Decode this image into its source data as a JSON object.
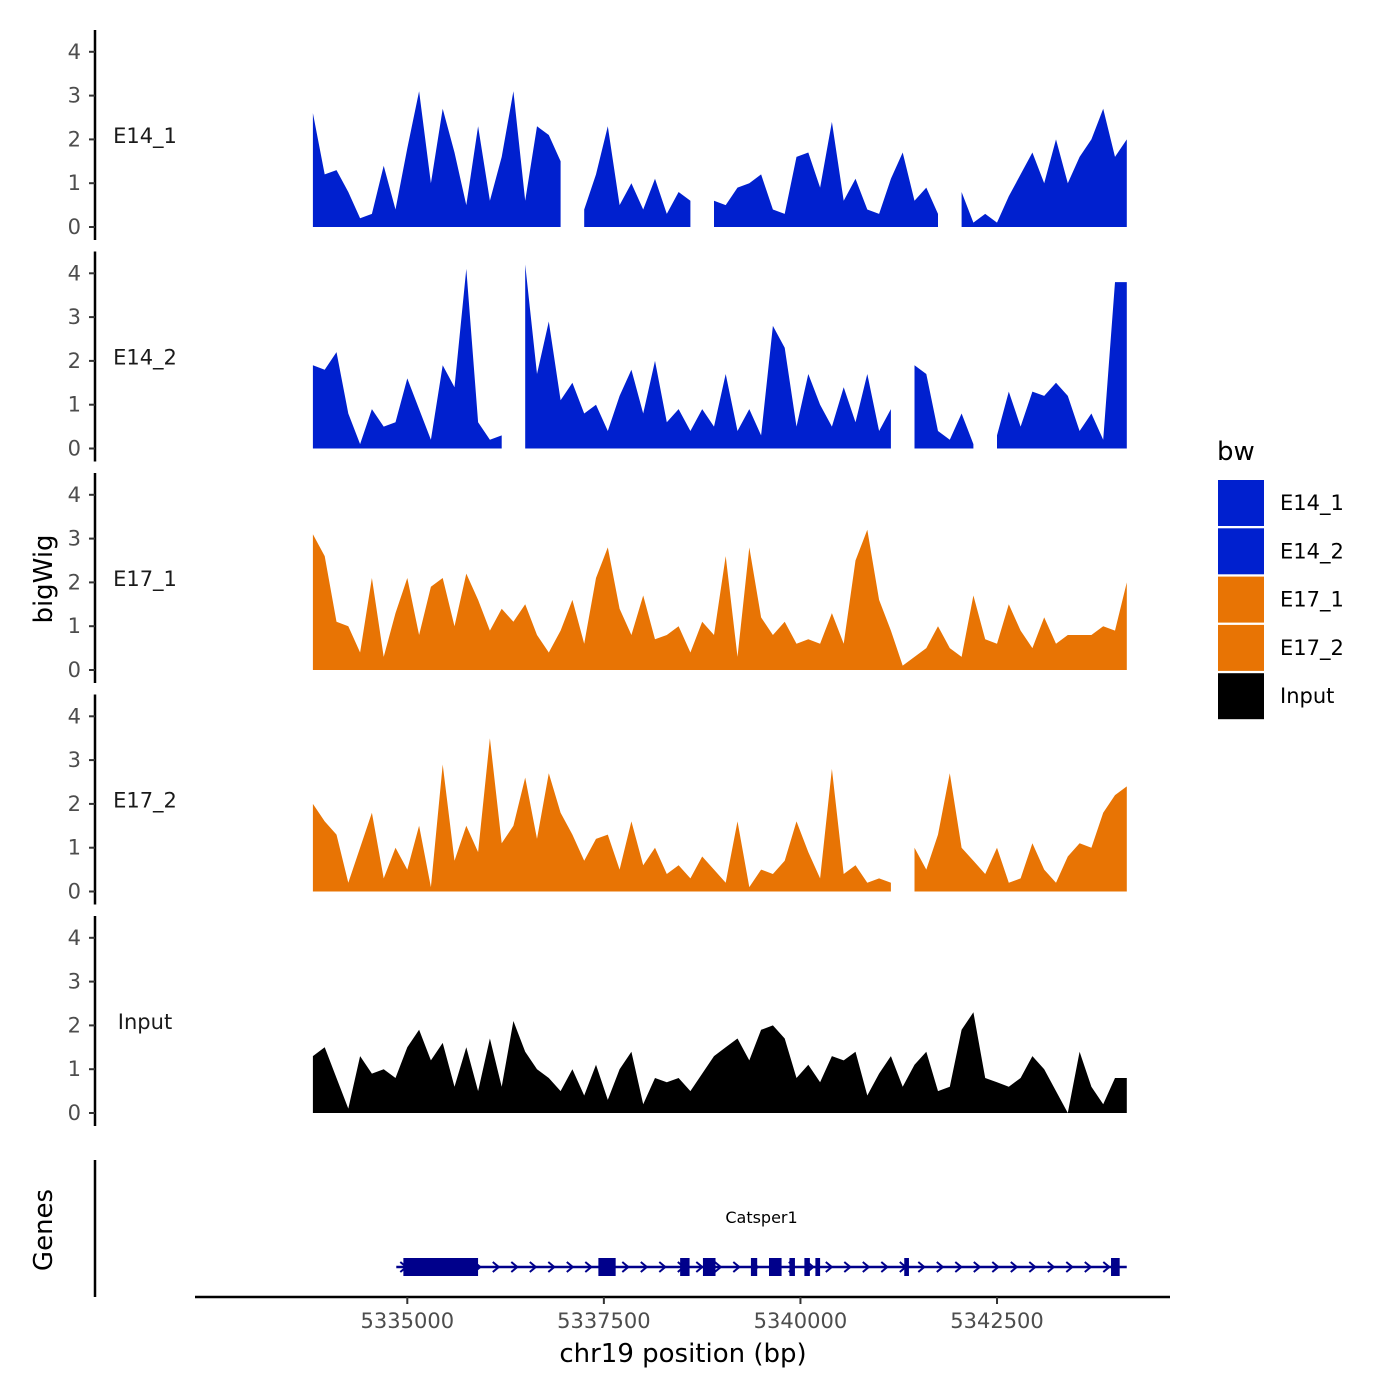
{
  "chart_data": {
    "type": "area",
    "ylabel": "bigWig",
    "xlabel": "chr19 position (bp)",
    "genes_label": "Genes",
    "ylim": [
      0,
      4.5
    ],
    "xlim": [
      5332300,
      5344700
    ],
    "y_ticks": [
      "0",
      "1",
      "2",
      "3",
      "4"
    ],
    "x_ticks": [
      {
        "value": 5335000,
        "label": "5335000"
      },
      {
        "value": 5337500,
        "label": "5337500"
      },
      {
        "value": 5340000,
        "label": "5340000"
      },
      {
        "value": 5342500,
        "label": "5342500"
      }
    ],
    "legend": {
      "title": "bw",
      "items": [
        {
          "label": "E14_1",
          "color": "#0020CF"
        },
        {
          "label": "E14_2",
          "color": "#0020CF"
        },
        {
          "label": "E17_1",
          "color": "#E87404"
        },
        {
          "label": "E17_2",
          "color": "#E87404"
        },
        {
          "label": "Input",
          "color": "#000000"
        }
      ]
    },
    "series": [
      {
        "name": "E14_1",
        "color": "#0020CF",
        "x": [
          5333800,
          5333950,
          5334100,
          5334250,
          5334400,
          5334550,
          5334700,
          5334850,
          5335000,
          5335150,
          5335300,
          5335450,
          5335600,
          5335750,
          5335900,
          5336050,
          5336200,
          5336350,
          5336500,
          5336650,
          5336800,
          5336950,
          5337100,
          5337250,
          5337400,
          5337550,
          5337700,
          5337850,
          5338000,
          5338150,
          5338300,
          5338450,
          5338600,
          5338750,
          5338900,
          5339050,
          5339200,
          5339350,
          5339500,
          5339650,
          5339800,
          5339950,
          5340100,
          5340250,
          5340400,
          5340550,
          5340700,
          5340850,
          5341000,
          5341150,
          5341300,
          5341450,
          5341600,
          5341750,
          5341900,
          5342050,
          5342200,
          5342350,
          5342500,
          5342650,
          5342800,
          5342950,
          5343100,
          5343250,
          5343400,
          5343550,
          5343700,
          5343850,
          5344000,
          5344150
        ],
        "values": [
          2.6,
          1.2,
          1.3,
          0.8,
          0.2,
          0.3,
          1.4,
          0.4,
          1.8,
          3.1,
          1.0,
          2.7,
          1.7,
          0.5,
          2.3,
          0.6,
          1.6,
          3.1,
          0.6,
          2.3,
          2.1,
          1.5,
          null,
          0.4,
          1.2,
          2.3,
          0.5,
          1.0,
          0.4,
          1.1,
          0.3,
          0.8,
          0.6,
          null,
          0.6,
          0.5,
          0.9,
          1.0,
          1.2,
          0.4,
          0.3,
          1.6,
          1.7,
          0.9,
          2.4,
          0.6,
          1.1,
          0.4,
          0.3,
          1.1,
          1.7,
          0.6,
          0.9,
          0.3,
          null,
          0.8,
          0.1,
          0.3,
          0.1,
          0.7,
          1.2,
          1.7,
          1.0,
          2.0,
          1.0,
          1.6,
          2.0,
          2.7,
          1.6,
          2.0
        ]
      },
      {
        "name": "E14_2",
        "color": "#0020CF",
        "x": [
          5333800,
          5333950,
          5334100,
          5334250,
          5334400,
          5334550,
          5334700,
          5334850,
          5335000,
          5335150,
          5335300,
          5335450,
          5335600,
          5335750,
          5335900,
          5336050,
          5336200,
          5336350,
          5336500,
          5336650,
          5336800,
          5336950,
          5337100,
          5337250,
          5337400,
          5337550,
          5337700,
          5337850,
          5338000,
          5338150,
          5338300,
          5338450,
          5338600,
          5338750,
          5338900,
          5339050,
          5339200,
          5339350,
          5339500,
          5339650,
          5339800,
          5339950,
          5340100,
          5340250,
          5340400,
          5340550,
          5340700,
          5340850,
          5341000,
          5341150,
          5341300,
          5341450,
          5341600,
          5341750,
          5341900,
          5342050,
          5342200,
          5342350,
          5342500,
          5342650,
          5342800,
          5342950,
          5343100,
          5343250,
          5343400,
          5343550,
          5343700,
          5343850,
          5344000,
          5344150
        ],
        "values": [
          1.9,
          1.8,
          2.2,
          0.8,
          0.1,
          0.9,
          0.5,
          0.6,
          1.6,
          0.9,
          0.2,
          1.9,
          1.4,
          4.1,
          0.6,
          0.2,
          0.3,
          null,
          4.2,
          1.7,
          2.9,
          1.1,
          1.5,
          0.8,
          1.0,
          0.4,
          1.2,
          1.8,
          0.8,
          2.0,
          0.6,
          0.9,
          0.4,
          0.9,
          0.5,
          1.7,
          0.4,
          0.9,
          0.3,
          2.8,
          2.3,
          0.5,
          1.7,
          1.0,
          0.5,
          1.4,
          0.6,
          1.7,
          0.4,
          0.9,
          null,
          1.9,
          1.7,
          0.4,
          0.2,
          0.8,
          0.1,
          null,
          0.3,
          1.3,
          0.5,
          1.3,
          1.2,
          1.5,
          1.2,
          0.4,
          0.8,
          0.2,
          3.8,
          3.8
        ]
      },
      {
        "name": "E17_1",
        "color": "#E87404",
        "x": [
          5333800,
          5333950,
          5334100,
          5334250,
          5334400,
          5334550,
          5334700,
          5334850,
          5335000,
          5335150,
          5335300,
          5335450,
          5335600,
          5335750,
          5335900,
          5336050,
          5336200,
          5336350,
          5336500,
          5336650,
          5336800,
          5336950,
          5337100,
          5337250,
          5337400,
          5337550,
          5337700,
          5337850,
          5338000,
          5338150,
          5338300,
          5338450,
          5338600,
          5338750,
          5338900,
          5339050,
          5339200,
          5339350,
          5339500,
          5339650,
          5339800,
          5339950,
          5340100,
          5340250,
          5340400,
          5340550,
          5340700,
          5340850,
          5341000,
          5341150,
          5341300,
          5341450,
          5341600,
          5341750,
          5341900,
          5342050,
          5342200,
          5342350,
          5342500,
          5342650,
          5342800,
          5342950,
          5343100,
          5343250,
          5343400,
          5343550,
          5343700,
          5343850,
          5344000,
          5344150
        ],
        "values": [
          3.1,
          2.6,
          1.1,
          1.0,
          0.4,
          2.1,
          0.3,
          1.3,
          2.1,
          0.8,
          1.9,
          2.1,
          1.0,
          2.2,
          1.6,
          0.9,
          1.4,
          1.1,
          1.5,
          0.8,
          0.4,
          0.9,
          1.6,
          0.6,
          2.1,
          2.8,
          1.4,
          0.8,
          1.7,
          0.7,
          0.8,
          1.0,
          0.4,
          1.1,
          0.8,
          2.6,
          0.3,
          2.8,
          1.2,
          0.8,
          1.1,
          0.6,
          0.7,
          0.6,
          1.3,
          0.6,
          2.5,
          3.2,
          1.6,
          0.9,
          0.1,
          0.3,
          0.5,
          1.0,
          0.5,
          0.3,
          1.7,
          0.7,
          0.6,
          1.5,
          0.9,
          0.5,
          1.2,
          0.6,
          0.8,
          0.8,
          0.8,
          1.0,
          0.9,
          2.0
        ]
      },
      {
        "name": "E17_2",
        "color": "#E87404",
        "x": [
          5333800,
          5333950,
          5334100,
          5334250,
          5334400,
          5334550,
          5334700,
          5334850,
          5335000,
          5335150,
          5335300,
          5335450,
          5335600,
          5335750,
          5335900,
          5336050,
          5336200,
          5336350,
          5336500,
          5336650,
          5336800,
          5336950,
          5337100,
          5337250,
          5337400,
          5337550,
          5337700,
          5337850,
          5338000,
          5338150,
          5338300,
          5338450,
          5338600,
          5338750,
          5338900,
          5339050,
          5339200,
          5339350,
          5339500,
          5339650,
          5339800,
          5339950,
          5340100,
          5340250,
          5340400,
          5340550,
          5340700,
          5340850,
          5341000,
          5341150,
          5341300,
          5341450,
          5341600,
          5341750,
          5341900,
          5342050,
          5342200,
          5342350,
          5342500,
          5342650,
          5342800,
          5342950,
          5343100,
          5343250,
          5343400,
          5343550,
          5343700,
          5343850,
          5344000,
          5344150
        ],
        "values": [
          2.0,
          1.6,
          1.3,
          0.2,
          1.0,
          1.8,
          0.3,
          1.0,
          0.5,
          1.5,
          0.1,
          2.9,
          0.7,
          1.5,
          0.9,
          3.5,
          1.1,
          1.5,
          2.6,
          1.2,
          2.7,
          1.8,
          1.3,
          0.7,
          1.2,
          1.3,
          0.5,
          1.6,
          0.6,
          1.0,
          0.4,
          0.6,
          0.3,
          0.8,
          0.5,
          0.2,
          1.6,
          0.1,
          0.5,
          0.4,
          0.7,
          1.6,
          0.9,
          0.3,
          2.8,
          0.4,
          0.6,
          0.2,
          0.3,
          0.2,
          null,
          1.0,
          0.5,
          1.3,
          2.7,
          1.0,
          0.7,
          0.4,
          1.0,
          0.2,
          0.3,
          1.1,
          0.5,
          0.2,
          0.8,
          1.1,
          1.0,
          1.8,
          2.2,
          2.4
        ]
      },
      {
        "name": "Input",
        "color": "#000000",
        "x": [
          5333800,
          5333950,
          5334100,
          5334250,
          5334400,
          5334550,
          5334700,
          5334850,
          5335000,
          5335150,
          5335300,
          5335450,
          5335600,
          5335750,
          5335900,
          5336050,
          5336200,
          5336350,
          5336500,
          5336650,
          5336800,
          5336950,
          5337100,
          5337250,
          5337400,
          5337550,
          5337700,
          5337850,
          5338000,
          5338150,
          5338300,
          5338450,
          5338600,
          5338750,
          5338900,
          5339050,
          5339200,
          5339350,
          5339500,
          5339650,
          5339800,
          5339950,
          5340100,
          5340250,
          5340400,
          5340550,
          5340700,
          5340850,
          5341000,
          5341150,
          5341300,
          5341450,
          5341600,
          5341750,
          5341900,
          5342050,
          5342200,
          5342350,
          5342500,
          5342650,
          5342800,
          5342950,
          5343100,
          5343250,
          5343400,
          5343550,
          5343700,
          5343850,
          5344000,
          5344150
        ],
        "values": [
          1.3,
          1.5,
          0.8,
          0.1,
          1.3,
          0.9,
          1.0,
          0.8,
          1.5,
          1.9,
          1.2,
          1.6,
          0.6,
          1.5,
          0.5,
          1.7,
          0.6,
          2.1,
          1.4,
          1.0,
          0.8,
          0.5,
          1.0,
          0.4,
          1.1,
          0.3,
          1.0,
          1.4,
          0.2,
          0.8,
          0.7,
          0.8,
          0.5,
          0.9,
          1.3,
          1.5,
          1.7,
          1.2,
          1.9,
          2.0,
          1.7,
          0.8,
          1.1,
          0.7,
          1.3,
          1.2,
          1.4,
          0.4,
          0.9,
          1.3,
          0.6,
          1.1,
          1.4,
          0.5,
          0.6,
          1.9,
          2.3,
          0.8,
          0.7,
          0.6,
          0.8,
          1.3,
          1.0,
          0.5,
          0.0,
          1.4,
          0.6,
          0.2,
          0.8,
          0.8
        ]
      }
    ],
    "gene": {
      "name": "Catsper1",
      "color": "#00008B",
      "start": 5334860,
      "end": 5344150,
      "strand": "+",
      "exons": [
        [
          5334950,
          5335900
        ],
        [
          5337430,
          5337650
        ],
        [
          5338470,
          5338590
        ],
        [
          5338760,
          5338920
        ],
        [
          5339370,
          5339450
        ],
        [
          5339600,
          5339760
        ],
        [
          5339860,
          5339930
        ],
        [
          5340050,
          5340120
        ],
        [
          5340190,
          5340250
        ],
        [
          5341320,
          5341380
        ],
        [
          5343950,
          5344060
        ]
      ]
    }
  }
}
